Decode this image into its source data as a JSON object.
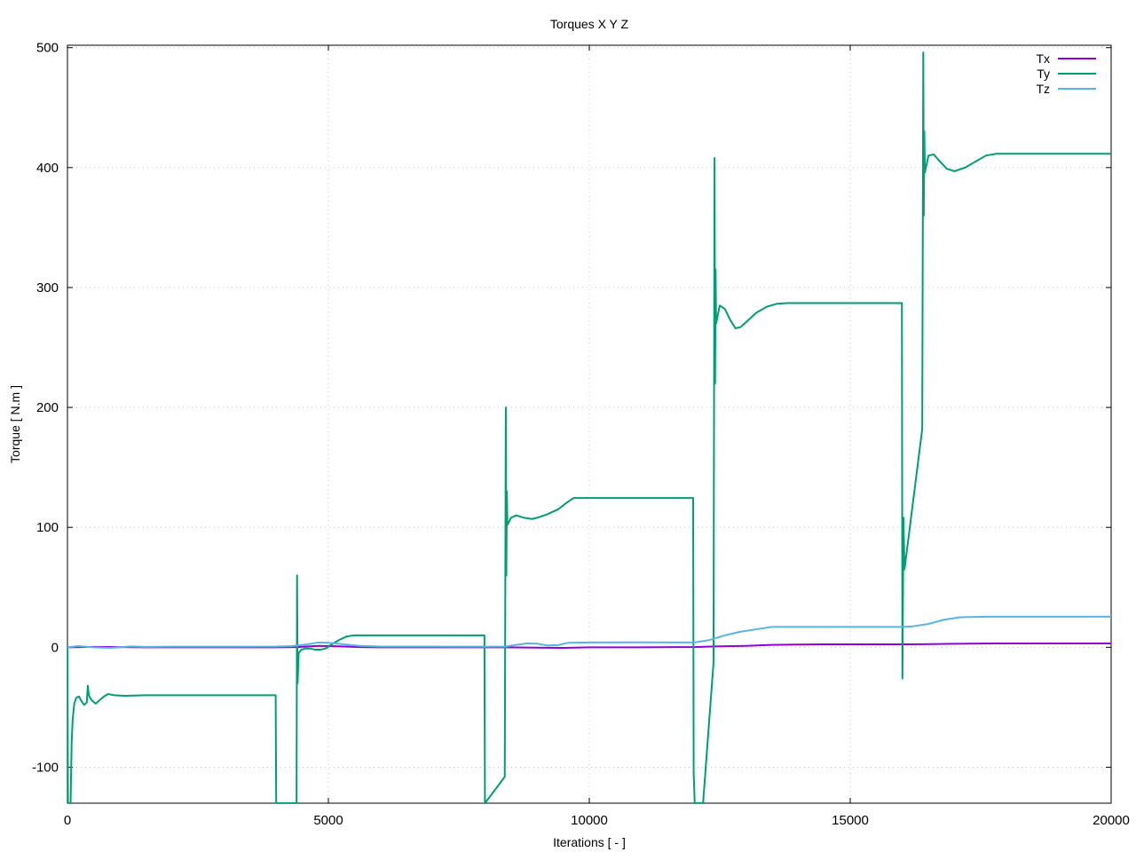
{
  "chart_data": {
    "type": "line",
    "title": "Torques X Y Z",
    "xlabel": "Iterations [ - ]",
    "ylabel": "Torque [ N.m ]",
    "xlim": [
      0,
      20000
    ],
    "ylim": [
      -130,
      502
    ],
    "x_ticks": [
      "0",
      "5000",
      "10000",
      "15000",
      "20000"
    ],
    "x_tick_values": [
      0,
      5000,
      10000,
      15000,
      20000
    ],
    "y_ticks": [
      "-100",
      "0",
      "100",
      "200",
      "300",
      "400",
      "500"
    ],
    "y_tick_values": [
      -100,
      0,
      100,
      200,
      300,
      400,
      500
    ],
    "grid": true,
    "legend_position": "top-right",
    "series": [
      {
        "name": "Tx",
        "color": "#9400d3",
        "points": [
          [
            0,
            0
          ],
          [
            500,
            0.3
          ],
          [
            1000,
            0.2
          ],
          [
            1500,
            0
          ],
          [
            2000,
            0
          ],
          [
            3000,
            0
          ],
          [
            4000,
            0
          ],
          [
            4400,
            0.2
          ],
          [
            4800,
            1.2
          ],
          [
            5200,
            0.8
          ],
          [
            5600,
            0.2
          ],
          [
            6000,
            0
          ],
          [
            7000,
            0
          ],
          [
            8000,
            0
          ],
          [
            8400,
            0
          ],
          [
            9000,
            -0.3
          ],
          [
            9500,
            -0.5
          ],
          [
            10000,
            0
          ],
          [
            11000,
            0
          ],
          [
            12000,
            0.2
          ],
          [
            12400,
            0.7
          ],
          [
            13000,
            1.2
          ],
          [
            13500,
            2
          ],
          [
            14000,
            2.3
          ],
          [
            14500,
            2.5
          ],
          [
            15000,
            2.5
          ],
          [
            16000,
            2.5
          ],
          [
            16400,
            2.6
          ],
          [
            17000,
            2.9
          ],
          [
            17800,
            3.2
          ],
          [
            18500,
            3.2
          ],
          [
            20000,
            3.2
          ]
        ]
      },
      {
        "name": "Ty",
        "color": "#009e73",
        "points": [
          [
            0,
            0
          ],
          [
            10,
            -130
          ],
          [
            60,
            -130
          ],
          [
            80,
            -80
          ],
          [
            100,
            -60
          ],
          [
            130,
            -47
          ],
          [
            170,
            -42
          ],
          [
            220,
            -41
          ],
          [
            270,
            -45
          ],
          [
            320,
            -48
          ],
          [
            370,
            -46
          ],
          [
            390,
            -32
          ],
          [
            410,
            -40
          ],
          [
            460,
            -44
          ],
          [
            540,
            -47
          ],
          [
            620,
            -44
          ],
          [
            700,
            -41
          ],
          [
            780,
            -39
          ],
          [
            900,
            -40
          ],
          [
            1100,
            -40.5
          ],
          [
            1500,
            -40
          ],
          [
            2000,
            -40
          ],
          [
            3000,
            -40
          ],
          [
            3990,
            -40
          ],
          [
            4000,
            -130
          ],
          [
            4390,
            -130
          ],
          [
            4400,
            60
          ],
          [
            4410,
            -30
          ],
          [
            4430,
            -5
          ],
          [
            4480,
            -2
          ],
          [
            4560,
            -1
          ],
          [
            4650,
            -1
          ],
          [
            4750,
            -2
          ],
          [
            4850,
            -2
          ],
          [
            4950,
            -1
          ],
          [
            5050,
            2
          ],
          [
            5200,
            6
          ],
          [
            5350,
            9
          ],
          [
            5500,
            10
          ],
          [
            6000,
            10
          ],
          [
            7000,
            10
          ],
          [
            7990,
            10
          ],
          [
            8000,
            -130
          ],
          [
            8380,
            -108
          ],
          [
            8400,
            200
          ],
          [
            8410,
            60
          ],
          [
            8420,
            130
          ],
          [
            8430,
            102
          ],
          [
            8500,
            108
          ],
          [
            8600,
            110
          ],
          [
            8750,
            108
          ],
          [
            8900,
            107
          ],
          [
            9000,
            108
          ],
          [
            9200,
            111
          ],
          [
            9400,
            115
          ],
          [
            9550,
            120
          ],
          [
            9700,
            124.5
          ],
          [
            10000,
            124.5
          ],
          [
            11000,
            124.5
          ],
          [
            11990,
            124.5
          ],
          [
            12000,
            -105
          ],
          [
            12020,
            -130
          ],
          [
            12180,
            -130
          ],
          [
            12380,
            -13
          ],
          [
            12400,
            408
          ],
          [
            12410,
            220
          ],
          [
            12420,
            315
          ],
          [
            12430,
            270
          ],
          [
            12500,
            285
          ],
          [
            12600,
            282
          ],
          [
            12700,
            273
          ],
          [
            12800,
            266
          ],
          [
            12900,
            267
          ],
          [
            13000,
            271
          ],
          [
            13200,
            279
          ],
          [
            13400,
            284
          ],
          [
            13600,
            286.5
          ],
          [
            13800,
            287
          ],
          [
            14000,
            287
          ],
          [
            15000,
            287
          ],
          [
            15990,
            287
          ],
          [
            16000,
            -26
          ],
          [
            16010,
            40
          ],
          [
            16020,
            108
          ],
          [
            16040,
            65
          ],
          [
            16380,
            182
          ],
          [
            16400,
            496
          ],
          [
            16410,
            360
          ],
          [
            16420,
            430
          ],
          [
            16430,
            396
          ],
          [
            16500,
            410
          ],
          [
            16600,
            411
          ],
          [
            16700,
            406
          ],
          [
            16850,
            399
          ],
          [
            17000,
            397
          ],
          [
            17200,
            400
          ],
          [
            17400,
            405
          ],
          [
            17600,
            410
          ],
          [
            17800,
            411.5
          ],
          [
            18500,
            411.5
          ],
          [
            20000,
            411.5
          ]
        ]
      },
      {
        "name": "Tz",
        "color": "#56b4e9",
        "points": [
          [
            0,
            0
          ],
          [
            200,
            1
          ],
          [
            500,
            0
          ],
          [
            800,
            -0.5
          ],
          [
            1000,
            0
          ],
          [
            1200,
            0.7
          ],
          [
            1500,
            0.3
          ],
          [
            2000,
            0.5
          ],
          [
            3000,
            0.5
          ],
          [
            4000,
            0.6
          ],
          [
            4300,
            1
          ],
          [
            4600,
            2.5
          ],
          [
            4800,
            4
          ],
          [
            5000,
            3.8
          ],
          [
            5300,
            2.5
          ],
          [
            5600,
            1.2
          ],
          [
            6000,
            0.6
          ],
          [
            7000,
            0.6
          ],
          [
            8000,
            0.5
          ],
          [
            8400,
            0.6
          ],
          [
            8600,
            2
          ],
          [
            8800,
            3.2
          ],
          [
            9000,
            3
          ],
          [
            9200,
            1.5
          ],
          [
            9400,
            1.8
          ],
          [
            9600,
            3.8
          ],
          [
            10000,
            4
          ],
          [
            11000,
            4.1
          ],
          [
            12000,
            4
          ],
          [
            12300,
            6
          ],
          [
            12600,
            10
          ],
          [
            12900,
            13
          ],
          [
            13200,
            15
          ],
          [
            13500,
            17
          ],
          [
            14000,
            17
          ],
          [
            15000,
            17
          ],
          [
            16000,
            17
          ],
          [
            16200,
            17.5
          ],
          [
            16500,
            19.5
          ],
          [
            16800,
            23
          ],
          [
            17100,
            25
          ],
          [
            17600,
            25.5
          ],
          [
            18000,
            25.5
          ],
          [
            20000,
            25.5
          ]
        ]
      }
    ]
  }
}
